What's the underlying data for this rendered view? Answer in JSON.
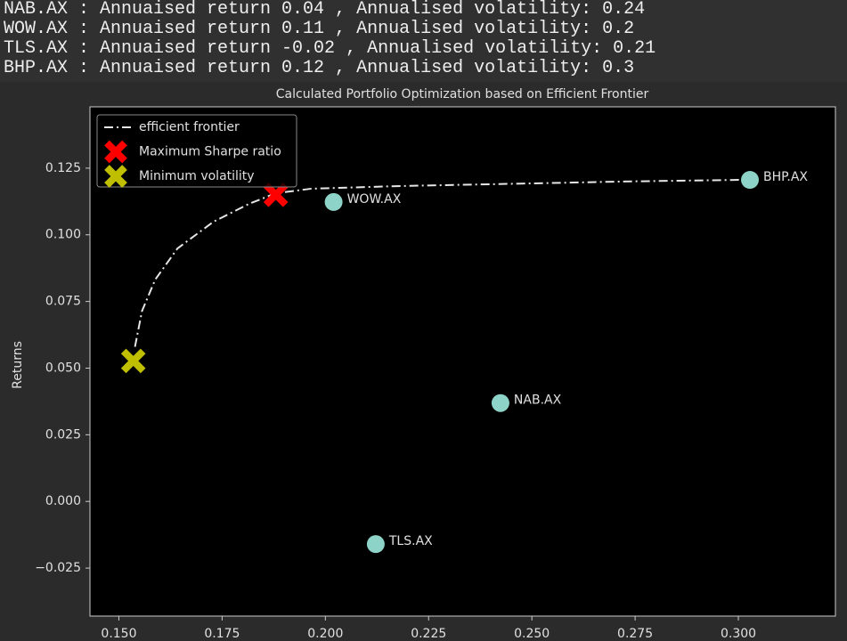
{
  "output_lines": [
    "NAB.AX : Annuaised return 0.04 , Annualised volatility: 0.24",
    "WOW.AX : Annuaised return 0.11 , Annualised volatility: 0.2",
    "TLS.AX : Annuaised return -0.02 , Annualised volatility: 0.21",
    "BHP.AX : Annuaised return 0.12 , Annualised volatility: 0.3"
  ],
  "chart_data": {
    "type": "scatter",
    "title": "Calculated Portfolio Optimization based on Efficient Frontier",
    "ylabel": "Returns",
    "xlim": [
      0.143,
      0.3235
    ],
    "ylim": [
      -0.043,
      0.148
    ],
    "xticks": [
      {
        "value": 0.15,
        "label": "0.150"
      },
      {
        "value": 0.175,
        "label": "0.175"
      },
      {
        "value": 0.2,
        "label": "0.200"
      },
      {
        "value": 0.225,
        "label": "0.225"
      },
      {
        "value": 0.25,
        "label": "0.250"
      },
      {
        "value": 0.275,
        "label": "0.275"
      },
      {
        "value": 0.3,
        "label": "0.300"
      }
    ],
    "yticks": [
      {
        "value": -0.025,
        "label": "−0.025"
      },
      {
        "value": 0,
        "label": "0.000"
      },
      {
        "value": 0.025,
        "label": "0.025"
      },
      {
        "value": 0.05,
        "label": "0.050"
      },
      {
        "value": 0.075,
        "label": "0.075"
      },
      {
        "value": 0.1,
        "label": "0.100"
      },
      {
        "value": 0.125,
        "label": "0.125"
      }
    ],
    "grid": false,
    "legend": "upper left",
    "series": [
      {
        "name": "efficient frontier",
        "kind": "line",
        "color": "#e6e6e6",
        "x": [
          0.1539,
          0.1556,
          0.1588,
          0.1642,
          0.1729,
          0.1815,
          0.188,
          0.1966,
          0.2182,
          0.2506,
          0.2722,
          0.3002
        ],
        "values": [
          0.058,
          0.0714,
          0.0832,
          0.0949,
          0.1049,
          0.1116,
          0.1156,
          0.1173,
          0.1183,
          0.1193,
          0.12,
          0.1206
        ]
      },
      {
        "name": "Maximum Sharpe ratio",
        "kind": "marker",
        "color": "#ff0000",
        "x": [
          0.188
        ],
        "values": [
          0.115
        ]
      },
      {
        "name": "Minimum volatility",
        "kind": "marker",
        "color": "#bfbf00",
        "x": [
          0.1535
        ],
        "values": [
          0.0527
        ]
      }
    ],
    "annotations": {
      "color": "#8dd3c7",
      "labels": [
        "NAB.AX",
        "WOW.AX",
        "TLS.AX",
        "BHP.AX"
      ],
      "x": [
        0.2424,
        0.202,
        0.2122,
        0.3028
      ],
      "values": [
        0.0369,
        0.1123,
        -0.016,
        0.1206
      ]
    }
  }
}
